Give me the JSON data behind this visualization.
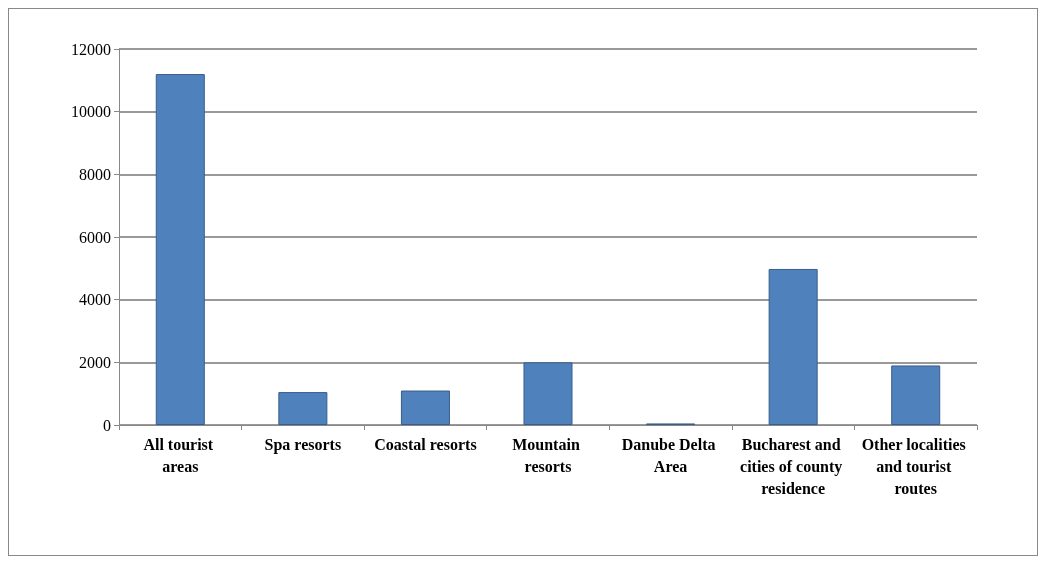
{
  "chart_data": {
    "type": "bar",
    "categories": [
      "All tourist areas",
      "Spa resorts",
      "Coastal resorts",
      "Mountain resorts",
      "Danube Delta Area",
      "Bucharest and cities of county residence",
      "Other localities and tourist routes"
    ],
    "values": [
      11200,
      1050,
      1100,
      2000,
      50,
      4980,
      1900
    ],
    "color": "#4f81bd",
    "ylim": [
      0,
      12000
    ],
    "yticks": [
      0,
      2000,
      4000,
      6000,
      8000,
      10000,
      12000
    ],
    "grid": "y"
  }
}
